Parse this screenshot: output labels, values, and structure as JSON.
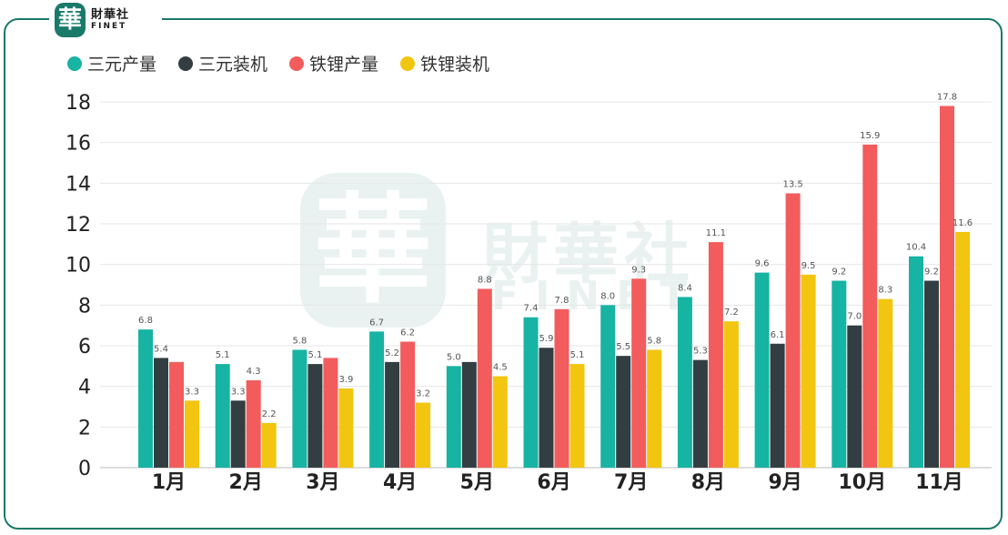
{
  "brand": {
    "name_cn": "財華社",
    "name_en": "FINET",
    "seal_char": "華"
  },
  "colors": {
    "ternary_output": "#17b3a3",
    "ternary_install": "#333e42",
    "lfp_output": "#f25c5c",
    "lfp_install": "#f2c511",
    "frame": "#1a7a6a"
  },
  "chart_data": {
    "type": "bar",
    "categories": [
      "1月",
      "2月",
      "3月",
      "4月",
      "5月",
      "6月",
      "7月",
      "8月",
      "9月",
      "10月",
      "11月"
    ],
    "series": [
      {
        "name": "三元产量",
        "color": "#17b3a3",
        "values": [
          6.8,
          5.1,
          5.8,
          6.7,
          5.0,
          7.4,
          8.0,
          8.4,
          9.6,
          9.2,
          10.4
        ],
        "labels": [
          "6.8",
          "5.1",
          "5.8",
          "6.7",
          "5.0",
          "7.4",
          "8.0",
          "8.4",
          "9.6",
          "9.2",
          "10.4"
        ]
      },
      {
        "name": "三元装机",
        "color": "#333e42",
        "values": [
          5.4,
          3.3,
          5.1,
          5.2,
          5.2,
          5.9,
          5.5,
          5.3,
          6.1,
          7.0,
          9.2
        ],
        "labels": [
          "5.4",
          "3.3",
          "5.1",
          "5.2",
          "",
          "5.9",
          "5.5",
          "5.3",
          "6.1",
          "7.0",
          "9.2"
        ]
      },
      {
        "name": "铁锂产量",
        "color": "#f25c5c",
        "values": [
          5.2,
          4.3,
          5.4,
          6.2,
          8.8,
          7.8,
          9.3,
          11.1,
          13.5,
          15.9,
          17.8
        ],
        "labels": [
          "",
          "4.3",
          "",
          "6.2",
          "8.8",
          "7.8",
          "9.3",
          "11.1",
          "13.5",
          "15.9",
          "17.8"
        ]
      },
      {
        "name": "铁锂装机",
        "color": "#f2c511",
        "values": [
          3.3,
          2.2,
          3.9,
          3.2,
          4.5,
          5.1,
          5.8,
          7.2,
          9.5,
          8.3,
          11.6
        ],
        "labels": [
          "3.3",
          "2.2",
          "3.9",
          "3.2",
          "4.5",
          "5.1",
          "5.8",
          "7.2",
          "9.5",
          "8.3",
          "11.6"
        ]
      }
    ],
    "yticks": [
      "0",
      "2",
      "4",
      "6",
      "8",
      "10",
      "12",
      "14",
      "16",
      "18"
    ],
    "ylim": [
      0,
      18
    ],
    "grid": true,
    "legend": "top-left"
  }
}
